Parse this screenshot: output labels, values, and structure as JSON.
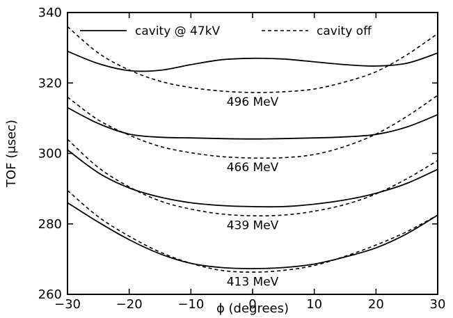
{
  "chart_data": {
    "type": "line",
    "title": "",
    "xlabel": "ϕ (degrees)",
    "ylabel": "TOF (μsec)",
    "xlim": [
      -30,
      30
    ],
    "ylim": [
      260,
      340
    ],
    "x_ticks": [
      -30,
      -20,
      -10,
      0,
      10,
      20,
      30
    ],
    "y_ticks": [
      260,
      280,
      300,
      320,
      340
    ],
    "legend": {
      "placement": "top",
      "entries": [
        {
          "label": "cavity @ 47kV",
          "style": "solid"
        },
        {
          "label": "cavity off",
          "style": "dashed"
        }
      ]
    },
    "x": [
      -30,
      -25,
      -20,
      -15,
      -10,
      -5,
      0,
      5,
      10,
      15,
      20,
      25,
      30
    ],
    "series": [
      {
        "group": "496 MeV",
        "style": "solid",
        "values": [
          329.0,
          325.5,
          323.5,
          323.6,
          325.2,
          326.6,
          327.0,
          326.8,
          326.0,
          325.2,
          324.8,
          325.6,
          328.5
        ]
      },
      {
        "group": "496 MeV",
        "style": "dashed",
        "values": [
          336.0,
          328.5,
          323.7,
          320.5,
          318.7,
          317.7,
          317.3,
          317.5,
          318.3,
          320.3,
          323.2,
          328.0,
          334.0
        ]
      },
      {
        "group": "466 MeV",
        "style": "solid",
        "values": [
          313.0,
          308.5,
          305.5,
          304.6,
          304.4,
          304.2,
          304.1,
          304.2,
          304.4,
          304.7,
          305.4,
          307.5,
          311.0
        ]
      },
      {
        "group": "466 MeV",
        "style": "dashed",
        "values": [
          316.0,
          309.5,
          305.2,
          302.0,
          300.2,
          299.1,
          298.7,
          298.8,
          299.7,
          302.0,
          305.5,
          310.5,
          316.5
        ]
      },
      {
        "group": "439 MeV",
        "style": "solid",
        "values": [
          301.0,
          294.5,
          290.2,
          287.6,
          286.0,
          285.2,
          284.9,
          284.9,
          285.6,
          286.8,
          288.7,
          291.5,
          295.5
        ]
      },
      {
        "group": "439 MeV",
        "style": "dashed",
        "values": [
          304.0,
          296.0,
          290.5,
          286.5,
          284.2,
          282.8,
          282.3,
          282.5,
          283.6,
          285.5,
          288.5,
          292.8,
          298.0
        ]
      },
      {
        "group": "413 MeV",
        "style": "solid",
        "values": [
          286.0,
          280.5,
          275.5,
          271.5,
          268.8,
          267.6,
          267.3,
          267.6,
          268.6,
          270.6,
          273.2,
          277.2,
          282.5
        ]
      },
      {
        "group": "413 MeV",
        "style": "dashed",
        "values": [
          289.5,
          282.0,
          276.5,
          272.0,
          268.8,
          266.8,
          266.3,
          266.8,
          268.2,
          270.8,
          274.0,
          277.8,
          282.5
        ]
      }
    ],
    "curve_labels": [
      {
        "text": "496 MeV",
        "x": 0,
        "y": 313.5
      },
      {
        "text": "466 MeV",
        "x": 0,
        "y": 295.0
      },
      {
        "text": "439 MeV",
        "x": 0,
        "y": 278.5
      },
      {
        "text": "413 MeV",
        "x": 0,
        "y": 262.5
      }
    ],
    "grid": false
  }
}
